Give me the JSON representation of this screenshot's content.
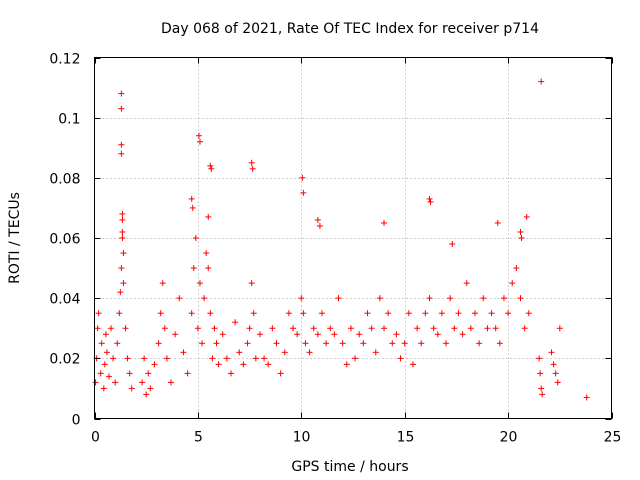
{
  "chart_data": {
    "type": "scatter",
    "title": "Day 068 of 2021, Rate Of TEC Index for receiver p714",
    "xlabel": "GPS time / hours",
    "ylabel": "ROTI / TECUs",
    "xlim": [
      0,
      25
    ],
    "ylim": [
      0,
      0.12
    ],
    "x_ticks": [
      0,
      5,
      10,
      15,
      20,
      25
    ],
    "y_ticks": [
      0,
      0.02,
      0.04,
      0.06,
      0.08,
      0.1,
      0.12
    ],
    "x_tick_labels": [
      "0",
      "5",
      "10",
      "15",
      "20",
      "25"
    ],
    "y_tick_labels": [
      "0",
      "0.02",
      "0.04",
      "0.06",
      "0.08",
      "0.1",
      "0.12"
    ],
    "grid": true,
    "marker": "+",
    "color": "#ff0000",
    "series": [
      {
        "name": "ROTI",
        "x": [
          0.05,
          0.1,
          0.15,
          0.2,
          0.3,
          0.35,
          0.45,
          0.5,
          0.55,
          0.6,
          0.7,
          0.8,
          0.9,
          1.0,
          1.1,
          1.2,
          1.25,
          1.3,
          1.35,
          1.4,
          1.5,
          1.6,
          1.7,
          1.8,
          1.3,
          1.3,
          1.3,
          1.3,
          1.35,
          1.35,
          1.35,
          1.4,
          2.3,
          2.4,
          2.5,
          2.6,
          2.7,
          2.9,
          3.1,
          3.2,
          3.3,
          3.4,
          3.5,
          3.7,
          3.9,
          4.1,
          4.3,
          4.5,
          4.7,
          4.8,
          4.9,
          5.0,
          5.1,
          5.2,
          5.3,
          5.4,
          5.5,
          5.6,
          5.7,
          5.8,
          5.9,
          6.0,
          6.2,
          6.4,
          6.6,
          6.8,
          7.0,
          7.2,
          7.4,
          7.5,
          7.6,
          7.7,
          7.8,
          8.0,
          8.2,
          8.4,
          8.6,
          8.8,
          9.0,
          9.2,
          9.4,
          9.6,
          9.8,
          10.0,
          10.1,
          10.2,
          10.4,
          10.6,
          10.8,
          11.0,
          11.2,
          11.4,
          11.6,
          11.8,
          12.0,
          12.2,
          12.4,
          12.6,
          12.8,
          13.0,
          13.2,
          13.4,
          13.6,
          13.8,
          14.0,
          14.2,
          14.4,
          14.6,
          14.8,
          15.0,
          15.2,
          15.4,
          15.6,
          15.8,
          16.0,
          16.2,
          16.4,
          16.6,
          16.8,
          17.0,
          17.2,
          17.4,
          17.6,
          17.8,
          18.0,
          18.2,
          18.4,
          18.6,
          18.8,
          19.0,
          19.2,
          19.4,
          19.6,
          19.8,
          20.0,
          20.2,
          20.4,
          20.6,
          20.8,
          21.0,
          21.5,
          21.55,
          21.6,
          21.65,
          22.1,
          22.2,
          22.3,
          22.4,
          22.5,
          23.8,
          4.7,
          4.75,
          5.05,
          5.1,
          5.5,
          5.6,
          5.65,
          7.6,
          7.65,
          10.05,
          10.1,
          10.8,
          10.9,
          16.2,
          16.25,
          20.6,
          20.65,
          20.9,
          14.0,
          17.3,
          19.5,
          21.6
        ],
        "y": [
          0.012,
          0.02,
          0.03,
          0.035,
          0.015,
          0.025,
          0.01,
          0.018,
          0.028,
          0.022,
          0.014,
          0.03,
          0.02,
          0.012,
          0.025,
          0.035,
          0.042,
          0.05,
          0.06,
          0.045,
          0.03,
          0.02,
          0.015,
          0.01,
          0.108,
          0.103,
          0.091,
          0.088,
          0.068,
          0.066,
          0.062,
          0.055,
          0.012,
          0.02,
          0.008,
          0.015,
          0.01,
          0.018,
          0.025,
          0.035,
          0.045,
          0.03,
          0.02,
          0.012,
          0.028,
          0.04,
          0.022,
          0.015,
          0.035,
          0.05,
          0.06,
          0.03,
          0.045,
          0.025,
          0.04,
          0.055,
          0.05,
          0.035,
          0.02,
          0.03,
          0.025,
          0.018,
          0.028,
          0.02,
          0.015,
          0.032,
          0.022,
          0.018,
          0.025,
          0.03,
          0.045,
          0.035,
          0.02,
          0.028,
          0.02,
          0.018,
          0.03,
          0.025,
          0.015,
          0.022,
          0.035,
          0.03,
          0.028,
          0.04,
          0.035,
          0.025,
          0.022,
          0.03,
          0.028,
          0.035,
          0.025,
          0.03,
          0.028,
          0.04,
          0.025,
          0.018,
          0.03,
          0.02,
          0.028,
          0.025,
          0.035,
          0.03,
          0.022,
          0.04,
          0.03,
          0.035,
          0.025,
          0.028,
          0.02,
          0.025,
          0.035,
          0.018,
          0.03,
          0.025,
          0.035,
          0.04,
          0.03,
          0.028,
          0.035,
          0.025,
          0.04,
          0.03,
          0.035,
          0.028,
          0.045,
          0.03,
          0.035,
          0.025,
          0.04,
          0.03,
          0.035,
          0.03,
          0.025,
          0.04,
          0.035,
          0.045,
          0.05,
          0.04,
          0.03,
          0.035,
          0.02,
          0.015,
          0.01,
          0.008,
          0.022,
          0.018,
          0.015,
          0.012,
          0.03,
          0.007,
          0.073,
          0.07,
          0.094,
          0.092,
          0.067,
          0.084,
          0.083,
          0.085,
          0.083,
          0.08,
          0.075,
          0.066,
          0.064,
          0.073,
          0.072,
          0.062,
          0.06,
          0.067,
          0.065,
          0.058,
          0.065,
          0.112
        ]
      }
    ]
  }
}
